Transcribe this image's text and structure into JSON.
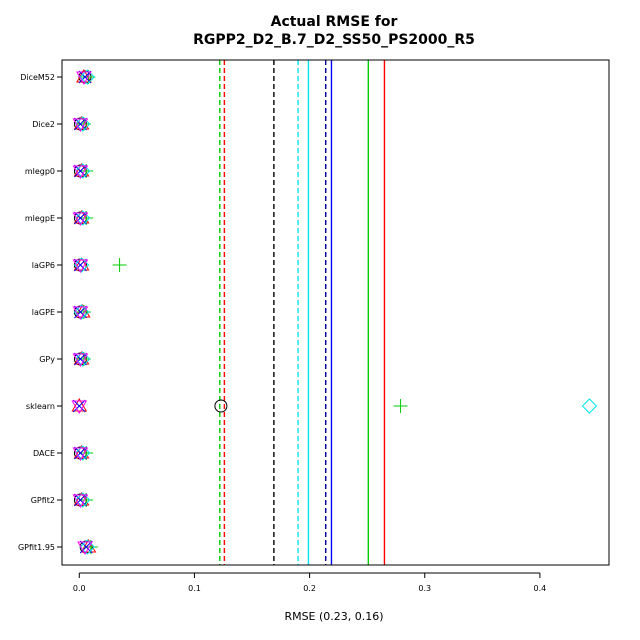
{
  "chart_data": {
    "type": "scatter",
    "title_lines": [
      "Actual RMSE for",
      "RGPP2_D2_B.7_D2_SS50_PS2000_R5"
    ],
    "xlabel": "RMSE (0.23, 0.16)",
    "ylabel": "",
    "xlim": [
      -0.015,
      0.46
    ],
    "x_ticks": [
      "0.0",
      "0.1",
      "0.2",
      "0.3",
      "0.4"
    ],
    "x_tick_values": [
      0.0,
      0.1,
      0.2,
      0.3,
      0.4
    ],
    "categories": [
      "DiceM52",
      "Dice2",
      "mlegp0",
      "mlegpE",
      "laGP6",
      "laGPE",
      "GPy",
      "sklearn",
      "DACE",
      "GPfit2",
      "GPfit1.95"
    ],
    "colors": {
      "black": "#000000",
      "red": "#ff0000",
      "green": "#00cc00",
      "blue": "#0000ff",
      "cyan": "#00e5ee",
      "magenta": "#ff00ff",
      "navy": "#000099"
    },
    "vlines": [
      {
        "x": 0.122,
        "color": "#00cc00",
        "style": "dashed"
      },
      {
        "x": 0.126,
        "color": "#ff0000",
        "style": "dashed"
      },
      {
        "x": 0.169,
        "color": "#000000",
        "style": "dashed"
      },
      {
        "x": 0.19,
        "color": "#00e5ee",
        "style": "dashed"
      },
      {
        "x": 0.199,
        "color": "#00e5ee",
        "style": "solid"
      },
      {
        "x": 0.214,
        "color": "#000099",
        "style": "dashed"
      },
      {
        "x": 0.219,
        "color": "#0000ff",
        "style": "solid"
      },
      {
        "x": 0.251,
        "color": "#00cc00",
        "style": "solid"
      },
      {
        "x": 0.265,
        "color": "#ff0000",
        "style": "solid"
      }
    ],
    "points": [
      {
        "row": 0,
        "x": 0.005,
        "marker": "circle",
        "color": "#000000"
      },
      {
        "row": 0,
        "x": 0.004,
        "marker": "triangle",
        "color": "#ff0000"
      },
      {
        "row": 0,
        "x": 0.008,
        "marker": "plus",
        "color": "#00cc00"
      },
      {
        "row": 0,
        "x": 0.005,
        "marker": "x",
        "color": "#0000ff"
      },
      {
        "row": 0,
        "x": 0.007,
        "marker": "diamond",
        "color": "#00e5ee"
      },
      {
        "row": 0,
        "x": 0.004,
        "marker": "triangle-down",
        "color": "#ff00ff"
      },
      {
        "row": 1,
        "x": 0.001,
        "marker": "circle",
        "color": "#000000"
      },
      {
        "row": 1,
        "x": 0.002,
        "marker": "triangle",
        "color": "#ff0000"
      },
      {
        "row": 1,
        "x": 0.004,
        "marker": "plus",
        "color": "#00cc00"
      },
      {
        "row": 1,
        "x": 0.001,
        "marker": "x",
        "color": "#0000ff"
      },
      {
        "row": 1,
        "x": 0.003,
        "marker": "diamond",
        "color": "#00e5ee"
      },
      {
        "row": 1,
        "x": 0.001,
        "marker": "triangle-down",
        "color": "#ff00ff"
      },
      {
        "row": 2,
        "x": 0.001,
        "marker": "circle",
        "color": "#000000"
      },
      {
        "row": 2,
        "x": 0.002,
        "marker": "triangle",
        "color": "#ff0000"
      },
      {
        "row": 2,
        "x": 0.006,
        "marker": "plus",
        "color": "#00cc00"
      },
      {
        "row": 2,
        "x": 0.001,
        "marker": "x",
        "color": "#0000ff"
      },
      {
        "row": 2,
        "x": 0.003,
        "marker": "diamond",
        "color": "#00e5ee"
      },
      {
        "row": 2,
        "x": 0.001,
        "marker": "triangle-down",
        "color": "#ff00ff"
      },
      {
        "row": 3,
        "x": 0.001,
        "marker": "circle",
        "color": "#000000"
      },
      {
        "row": 3,
        "x": 0.002,
        "marker": "triangle",
        "color": "#ff0000"
      },
      {
        "row": 3,
        "x": 0.006,
        "marker": "plus",
        "color": "#00cc00"
      },
      {
        "row": 3,
        "x": 0.001,
        "marker": "x",
        "color": "#0000ff"
      },
      {
        "row": 3,
        "x": 0.003,
        "marker": "diamond",
        "color": "#00e5ee"
      },
      {
        "row": 3,
        "x": 0.001,
        "marker": "triangle-down",
        "color": "#ff00ff"
      },
      {
        "row": 4,
        "x": 0.001,
        "marker": "circle",
        "color": "#000000"
      },
      {
        "row": 4,
        "x": 0.002,
        "marker": "triangle",
        "color": "#ff0000"
      },
      {
        "row": 4,
        "x": 0.035,
        "marker": "plus",
        "color": "#00cc00"
      },
      {
        "row": 4,
        "x": 0.001,
        "marker": "x",
        "color": "#0000ff"
      },
      {
        "row": 4,
        "x": 0.002,
        "marker": "diamond",
        "color": "#00e5ee"
      },
      {
        "row": 4,
        "x": 0.001,
        "marker": "triangle-down",
        "color": "#ff00ff"
      },
      {
        "row": 5,
        "x": 0.001,
        "marker": "circle",
        "color": "#000000"
      },
      {
        "row": 5,
        "x": 0.003,
        "marker": "triangle",
        "color": "#ff0000"
      },
      {
        "row": 5,
        "x": 0.004,
        "marker": "plus",
        "color": "#00cc00"
      },
      {
        "row": 5,
        "x": 0.001,
        "marker": "x",
        "color": "#0000ff"
      },
      {
        "row": 5,
        "x": 0.002,
        "marker": "diamond",
        "color": "#00e5ee"
      },
      {
        "row": 5,
        "x": 0.001,
        "marker": "triangle-down",
        "color": "#ff00ff"
      },
      {
        "row": 6,
        "x": 0.001,
        "marker": "circle",
        "color": "#000000"
      },
      {
        "row": 6,
        "x": 0.002,
        "marker": "triangle",
        "color": "#ff0000"
      },
      {
        "row": 6,
        "x": 0.004,
        "marker": "plus",
        "color": "#00cc00"
      },
      {
        "row": 6,
        "x": 0.001,
        "marker": "x",
        "color": "#0000ff"
      },
      {
        "row": 6,
        "x": 0.003,
        "marker": "diamond",
        "color": "#00e5ee"
      },
      {
        "row": 6,
        "x": 0.001,
        "marker": "triangle-down",
        "color": "#ff00ff"
      },
      {
        "row": 7,
        "x": 0.123,
        "marker": "circle",
        "color": "#000000"
      },
      {
        "row": 7,
        "x": 0.0,
        "marker": "triangle",
        "color": "#ff0000"
      },
      {
        "row": 7,
        "x": 0.279,
        "marker": "plus",
        "color": "#00cc00"
      },
      {
        "row": 7,
        "x": 0.0,
        "marker": "x",
        "color": "#0000ff"
      },
      {
        "row": 7,
        "x": 0.443,
        "marker": "diamond",
        "color": "#00e5ee"
      },
      {
        "row": 7,
        "x": 0.0,
        "marker": "triangle-down",
        "color": "#ff00ff"
      },
      {
        "row": 8,
        "x": 0.001,
        "marker": "circle",
        "color": "#000000"
      },
      {
        "row": 8,
        "x": 0.002,
        "marker": "triangle",
        "color": "#ff0000"
      },
      {
        "row": 8,
        "x": 0.006,
        "marker": "plus",
        "color": "#00cc00"
      },
      {
        "row": 8,
        "x": 0.001,
        "marker": "x",
        "color": "#0000ff"
      },
      {
        "row": 8,
        "x": 0.003,
        "marker": "diamond",
        "color": "#00e5ee"
      },
      {
        "row": 8,
        "x": 0.001,
        "marker": "triangle-down",
        "color": "#ff00ff"
      },
      {
        "row": 9,
        "x": 0.001,
        "marker": "circle",
        "color": "#000000"
      },
      {
        "row": 9,
        "x": 0.002,
        "marker": "triangle",
        "color": "#ff0000"
      },
      {
        "row": 9,
        "x": 0.006,
        "marker": "plus",
        "color": "#00cc00"
      },
      {
        "row": 9,
        "x": 0.001,
        "marker": "x",
        "color": "#0000ff"
      },
      {
        "row": 9,
        "x": 0.003,
        "marker": "diamond",
        "color": "#00e5ee"
      },
      {
        "row": 9,
        "x": 0.001,
        "marker": "triangle-down",
        "color": "#ff00ff"
      },
      {
        "row": 10,
        "x": 0.006,
        "marker": "circle",
        "color": "#000000"
      },
      {
        "row": 10,
        "x": 0.008,
        "marker": "triangle",
        "color": "#ff0000"
      },
      {
        "row": 10,
        "x": 0.01,
        "marker": "plus",
        "color": "#00cc00"
      },
      {
        "row": 10,
        "x": 0.006,
        "marker": "x",
        "color": "#0000ff"
      },
      {
        "row": 10,
        "x": 0.007,
        "marker": "diamond",
        "color": "#00e5ee"
      },
      {
        "row": 10,
        "x": 0.005,
        "marker": "triangle-down",
        "color": "#ff00ff"
      }
    ]
  }
}
